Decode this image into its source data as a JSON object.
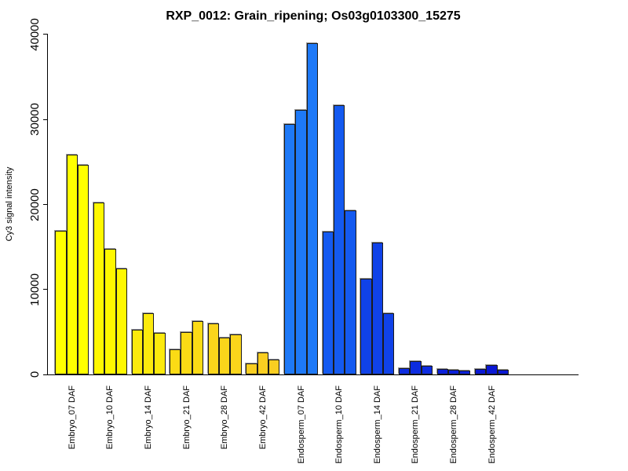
{
  "chart_data": {
    "type": "bar",
    "title": "RXP_0012: Grain_ripening; Os03g0103300_15275",
    "xlabel": "",
    "ylabel": "Cy3 signal intensity",
    "ylim": [
      0,
      40000
    ],
    "yticks": [
      0,
      10000,
      20000,
      30000,
      40000
    ],
    "grid": false,
    "legend": "none",
    "bars_per_group": 3,
    "categories": [
      "Embryo_07 DAF",
      "Embryo_10 DAF",
      "Embryo_14 DAF",
      "Embryo_21 DAF",
      "Embryo_28 DAF",
      "Embryo_42 DAF",
      "Endosperm_07 DAF",
      "Endosperm_10 DAF",
      "Endosperm_14 DAF",
      "Endosperm_21 DAF",
      "Endosperm_28 DAF",
      "Endosperm_42 DAF"
    ],
    "groups": [
      {
        "label": "Embryo_07 DAF",
        "color": "#FFFF00",
        "values": [
          16900,
          25900,
          24700
        ]
      },
      {
        "label": "Embryo_10 DAF",
        "color": "#FFF800",
        "values": [
          20200,
          14800,
          12500
        ]
      },
      {
        "label": "Embryo_14 DAF",
        "color": "#FCEA0D",
        "values": [
          5300,
          7200,
          4900
        ]
      },
      {
        "label": "Embryo_21 DAF",
        "color": "#FBDB15",
        "values": [
          3000,
          5000,
          6300
        ]
      },
      {
        "label": "Embryo_28 DAF",
        "color": "#FAD51B",
        "values": [
          6000,
          4400,
          4700
        ]
      },
      {
        "label": "Embryo_42 DAF",
        "color": "#F9CE21",
        "values": [
          1300,
          2600,
          1800
        ]
      },
      {
        "label": "Endosperm_07 DAF",
        "color": "#1E79F7",
        "values": [
          29500,
          31100,
          39000
        ]
      },
      {
        "label": "Endosperm_10 DAF",
        "color": "#145AF0",
        "values": [
          16800,
          31700,
          19300
        ]
      },
      {
        "label": "Endosperm_14 DAF",
        "color": "#1042E8",
        "values": [
          11300,
          15500,
          7200
        ]
      },
      {
        "label": "Endosperm_21 DAF",
        "color": "#0D2CE0",
        "values": [
          800,
          1600,
          1000
        ]
      },
      {
        "label": "Endosperm_28 DAF",
        "color": "#0B20DA",
        "values": [
          700,
          600,
          500
        ]
      },
      {
        "label": "Endosperm_42 DAF",
        "color": "#0A18D4",
        "values": [
          700,
          1100,
          600
        ]
      }
    ],
    "colors": {
      "background": "#FFFFFF",
      "axis": "#000000",
      "bar_border": "#1B1B1B",
      "bar_shadow": "#9B9B9B",
      "title_text": "#000000"
    }
  }
}
